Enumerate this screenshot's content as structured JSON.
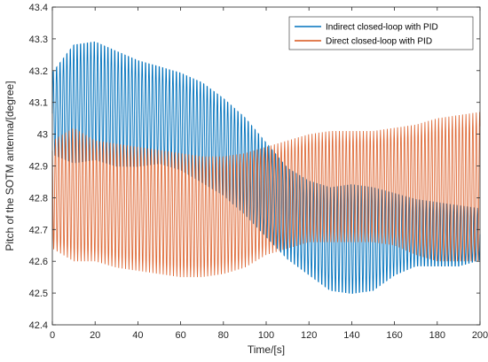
{
  "chart_data": {
    "type": "line",
    "title": "",
    "xlabel": "Time/[s]",
    "ylabel": "Pitch of the SOTM antenna/[degree]",
    "xlim": [
      0,
      200
    ],
    "ylim": [
      42.4,
      43.4
    ],
    "xticks": [
      "0",
      "20",
      "40",
      "60",
      "80",
      "100",
      "120",
      "140",
      "160",
      "180",
      "200"
    ],
    "yticks": [
      "42.4",
      "42.5",
      "42.6",
      "42.7",
      "42.8",
      "42.9",
      "43",
      "43.1",
      "43.2",
      "43.3",
      "43.4"
    ],
    "grid": false,
    "legend_position": "top-right",
    "oscillation_period_s": 1.6,
    "series": [
      {
        "name": "Indirect closed-loop with PID",
        "color": "#0072BD",
        "envelope_x": [
          0,
          10,
          20,
          30,
          40,
          50,
          60,
          70,
          80,
          90,
          100,
          110,
          120,
          130,
          140,
          150,
          160,
          170,
          180,
          190,
          200
        ],
        "envelope_upper": [
          43.2,
          43.29,
          43.3,
          43.27,
          43.24,
          43.22,
          43.2,
          43.17,
          43.12,
          43.06,
          42.98,
          42.9,
          42.86,
          42.84,
          42.85,
          42.84,
          42.82,
          42.8,
          42.79,
          42.78,
          42.77
        ],
        "envelope_lower": [
          42.93,
          42.9,
          42.91,
          42.89,
          42.89,
          42.9,
          42.88,
          42.84,
          42.8,
          42.74,
          42.67,
          42.6,
          42.55,
          42.5,
          42.49,
          42.5,
          42.55,
          42.58,
          42.58,
          42.58,
          42.6
        ]
      },
      {
        "name": "Direct closed-loop with PID",
        "color": "#D95319",
        "envelope_x": [
          0,
          10,
          20,
          30,
          40,
          50,
          60,
          70,
          80,
          90,
          100,
          110,
          120,
          130,
          140,
          150,
          160,
          170,
          180,
          190,
          200
        ],
        "envelope_upper": [
          42.98,
          43.02,
          42.98,
          42.97,
          42.96,
          42.95,
          42.94,
          42.93,
          42.93,
          42.94,
          42.96,
          42.98,
          43.0,
          43.01,
          43.01,
          43.01,
          43.02,
          43.03,
          43.05,
          43.06,
          43.07
        ],
        "envelope_lower": [
          42.64,
          42.6,
          42.6,
          42.58,
          42.57,
          42.56,
          42.55,
          42.55,
          42.56,
          42.58,
          42.62,
          42.64,
          42.66,
          42.66,
          42.66,
          42.66,
          42.65,
          42.62,
          42.6,
          42.6,
          42.6
        ]
      }
    ]
  }
}
